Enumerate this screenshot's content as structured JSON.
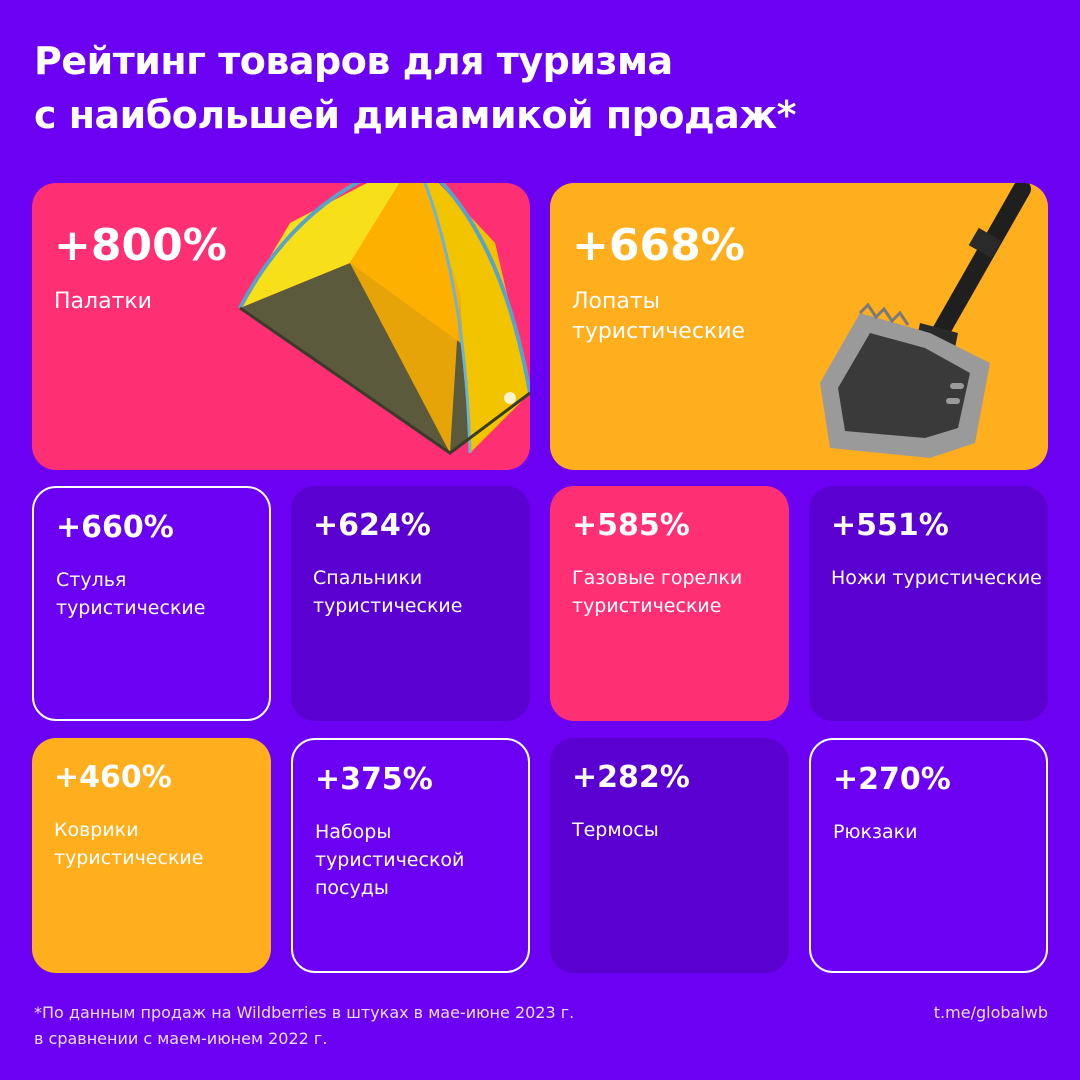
{
  "header": {
    "title_line1": "Рейтинг товаров для туризма",
    "title_line2": "с наибольшей динамикой продаж*"
  },
  "colors": {
    "background": "#6c00f2",
    "pink": "#ff2f74",
    "orange": "#ffae1e",
    "violet_dark": "#5a00d0",
    "white": "#ffffff"
  },
  "cards": [
    {
      "percent": "+800%",
      "name": "Палатки"
    },
    {
      "percent": "+668%",
      "name": "Лопаты туристические"
    },
    {
      "percent": "+660%",
      "name": "Стулья туристические"
    },
    {
      "percent": "+624%",
      "name": "Спальники туристические"
    },
    {
      "percent": "+585%",
      "name": "Газовые горелки туристические"
    },
    {
      "percent": "+551%",
      "name": "Ножи туристические"
    },
    {
      "percent": "+460%",
      "name": "Коврики туристические"
    },
    {
      "percent": "+375%",
      "name": "Наборы туристической посуды"
    },
    {
      "percent": "+282%",
      "name": "Термосы"
    },
    {
      "percent": "+270%",
      "name": "Рюкзаки"
    }
  ],
  "images": {
    "tent": "tent-image",
    "shovel": "shovel-image"
  },
  "footer": {
    "note_line1": "*По данным продаж на Wildberries в штуках в мае-июне 2023 г.",
    "note_line2": "в сравнении с маем-июнем 2022 г.",
    "handle": "t.me/globalwb"
  }
}
